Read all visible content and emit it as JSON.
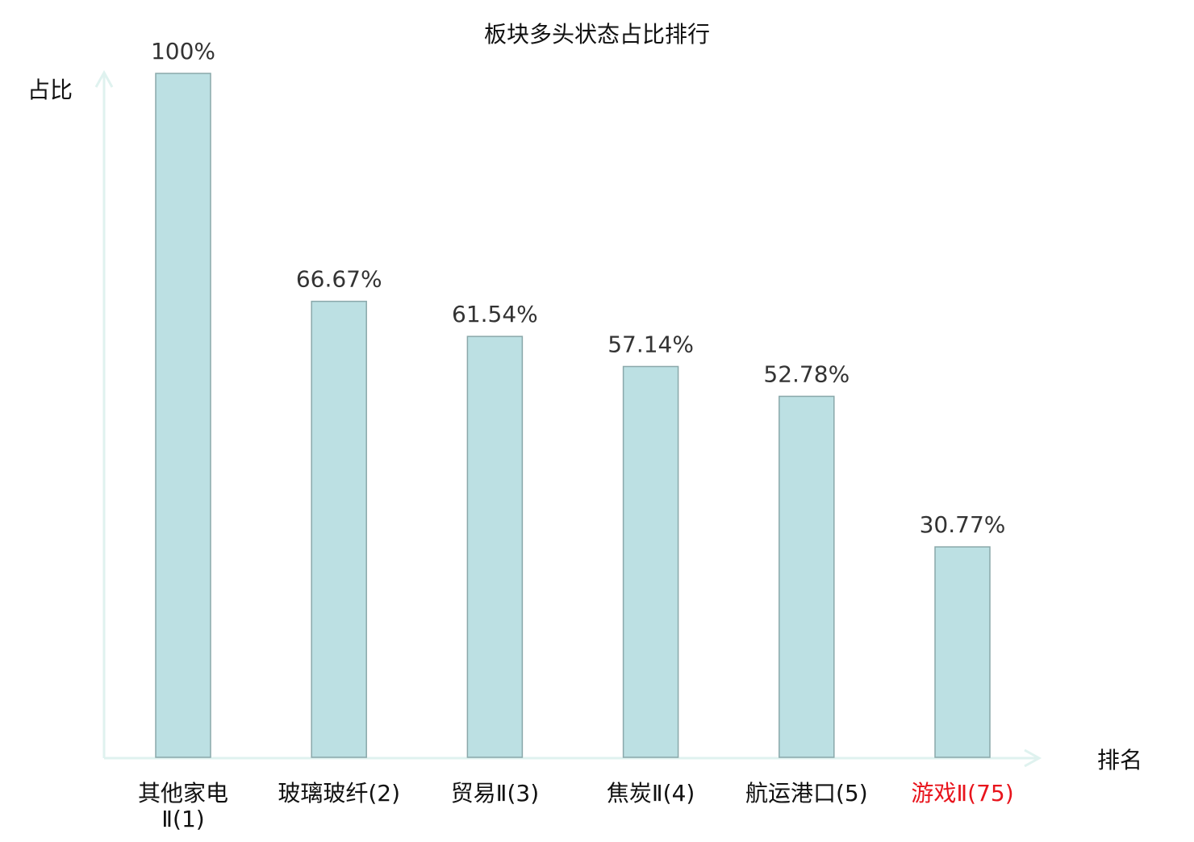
{
  "chart_data": {
    "type": "bar",
    "title": "板块多头状态占比排行",
    "xlabel": "排名",
    "ylabel": "占比",
    "categories": [
      "其他家电Ⅱ(1)",
      "玻璃玻纤(2)",
      "贸易Ⅱ(3)",
      "焦炭Ⅱ(4)",
      "航运港口(5)",
      "游戏Ⅱ(75)"
    ],
    "values": [
      100,
      66.67,
      61.54,
      57.14,
      52.78,
      30.77
    ],
    "data_labels": [
      "100%",
      "66.67%",
      "61.54%",
      "57.14%",
      "52.78%",
      "30.77%"
    ],
    "highlight_category": "游戏Ⅱ(75)",
    "ylim": [
      0,
      100
    ],
    "grid": false,
    "legend": "none",
    "colors": {
      "bar_fill": "#bce0e3",
      "bar_stroke": "#8aa8aa",
      "axis": "#dff2ef",
      "text": "#333333",
      "highlight": "#e8141c"
    }
  }
}
